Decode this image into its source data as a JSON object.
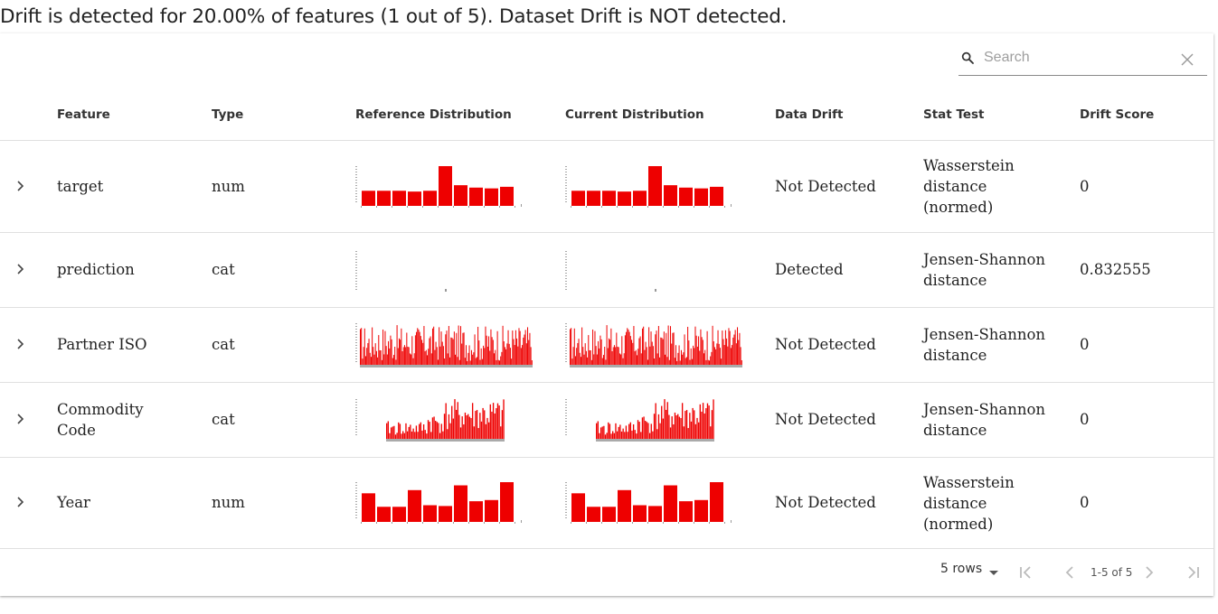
{
  "summary": "Drift is detected for 20.00% of features (1 out of 5). Dataset Drift is NOT detected.",
  "search": {
    "placeholder": "Search",
    "value": ""
  },
  "columns": {
    "feature": "Feature",
    "type": "Type",
    "reference": "Reference Distribution",
    "current": "Current Distribution",
    "drift": "Data Drift",
    "stat_test": "Stat Test",
    "score": "Drift Score"
  },
  "colors": {
    "bar": "#ee0000",
    "text": "#222222",
    "divider": "#e0e0e0"
  },
  "rows": [
    {
      "feature": [
        "target"
      ],
      "type": "num",
      "drift": "Not Detected",
      "stat_test": [
        "Wasserstein",
        "distance",
        "(normed)"
      ],
      "score": "0"
    },
    {
      "feature": [
        "prediction"
      ],
      "type": "cat",
      "drift": "Detected",
      "stat_test": [
        "Jensen-Shannon",
        "distance"
      ],
      "score": "0.832555"
    },
    {
      "feature": [
        "Partner ISO"
      ],
      "type": "cat",
      "drift": "Not Detected",
      "stat_test": [
        "Jensen-Shannon",
        "distance"
      ],
      "score": "0"
    },
    {
      "feature": [
        "Commodity",
        "Code"
      ],
      "type": "cat",
      "drift": "Not Detected",
      "stat_test": [
        "Jensen-Shannon",
        "distance"
      ],
      "score": "0"
    },
    {
      "feature": [
        "Year"
      ],
      "type": "num",
      "drift": "Not Detected",
      "stat_test": [
        "Wasserstein",
        "distance",
        "(normed)"
      ],
      "score": "0"
    }
  ],
  "distributions": {
    "target": {
      "reference": [
        0.38,
        0.38,
        0.38,
        0.36,
        0.38,
        1.0,
        0.52,
        0.46,
        0.44,
        0.48
      ],
      "current": [
        0.38,
        0.38,
        0.38,
        0.36,
        0.38,
        1.0,
        0.52,
        0.46,
        0.44,
        0.48
      ]
    },
    "year": {
      "reference": [
        0.72,
        0.38,
        0.38,
        0.8,
        0.42,
        0.4,
        0.92,
        0.52,
        0.55,
        1.0
      ],
      "current": [
        0.72,
        0.38,
        0.38,
        0.8,
        0.42,
        0.4,
        0.92,
        0.52,
        0.55,
        1.0
      ]
    }
  },
  "pagination": {
    "rows_label": "5 rows",
    "range": "1-5 of 5"
  }
}
